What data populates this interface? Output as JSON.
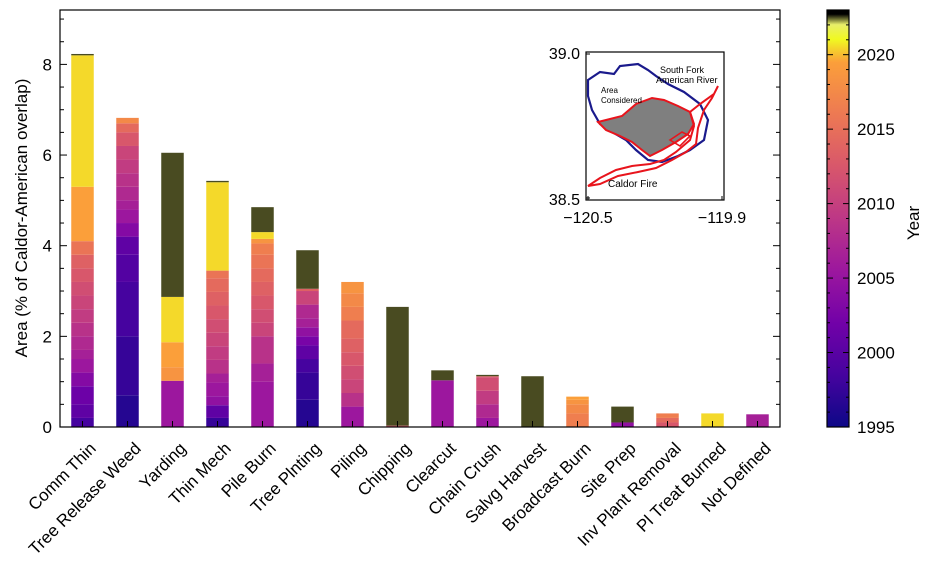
{
  "chart_data": {
    "type": "bar",
    "subtype": "stacked",
    "ylabel": "Area (% of Caldor-American overlap)",
    "ylim": [
      0,
      9.2
    ],
    "yticks": [
      0,
      2,
      4,
      6,
      8
    ],
    "categories": [
      "Comm Thin",
      "Tree Release Weed",
      "Yarding",
      "Thin Mech",
      "Pile Burn",
      "Tree Plnting",
      "Piling",
      "Chipping",
      "Clearcut",
      "Chain Crush",
      "Salvg Harvest",
      "Broadcast Burn",
      "Site Prep",
      "Inv Plant Removal",
      "Pl Treat Burned",
      "Not Defined"
    ],
    "segments": [
      [
        {
          "year": 1998,
          "value": 0.2
        },
        {
          "year": 2000,
          "value": 0.3
        },
        {
          "year": 2001,
          "value": 0.4
        },
        {
          "year": 2003,
          "value": 0.3
        },
        {
          "year": 2005,
          "value": 0.3
        },
        {
          "year": 2006,
          "value": 0.2
        },
        {
          "year": 2007,
          "value": 0.3
        },
        {
          "year": 2008,
          "value": 0.3
        },
        {
          "year": 2009,
          "value": 0.3
        },
        {
          "year": 2010,
          "value": 0.3
        },
        {
          "year": 2011,
          "value": 0.3
        },
        {
          "year": 2012,
          "value": 0.3
        },
        {
          "year": 2013,
          "value": 0.3
        },
        {
          "year": 2015,
          "value": 0.3
        },
        {
          "year": 2019,
          "value": 1.2
        },
        {
          "year": 2020,
          "value": 2.9
        },
        {
          "year": 2022,
          "value": 0.03
        }
      ],
      [
        {
          "year": 1996,
          "value": 0.7
        },
        {
          "year": 1997,
          "value": 1.3
        },
        {
          "year": 1998,
          "value": 1.2
        },
        {
          "year": 1999,
          "value": 0.6
        },
        {
          "year": 2000,
          "value": 0.4
        },
        {
          "year": 2003,
          "value": 0.3
        },
        {
          "year": 2005,
          "value": 0.3
        },
        {
          "year": 2006,
          "value": 0.2
        },
        {
          "year": 2007,
          "value": 0.3
        },
        {
          "year": 2008,
          "value": 0.3
        },
        {
          "year": 2009,
          "value": 0.3
        },
        {
          "year": 2010,
          "value": 0.3
        },
        {
          "year": 2012,
          "value": 0.3
        },
        {
          "year": 2014,
          "value": 0.2
        },
        {
          "year": 2017,
          "value": 0.12
        }
      ],
      [
        {
          "year": 2005,
          "value": 1.02
        },
        {
          "year": 2018,
          "value": 0.3
        },
        {
          "year": 2019,
          "value": 0.55
        },
        {
          "year": 2020,
          "value": 1.0
        },
        {
          "year": 2022,
          "value": 3.18
        }
      ],
      [
        {
          "year": 1997,
          "value": 0.2
        },
        {
          "year": 2000,
          "value": 0.28
        },
        {
          "year": 2004,
          "value": 0.2
        },
        {
          "year": 2005,
          "value": 0.3
        },
        {
          "year": 2006,
          "value": 0.2
        },
        {
          "year": 2008,
          "value": 0.3
        },
        {
          "year": 2009,
          "value": 0.3
        },
        {
          "year": 2010,
          "value": 0.3
        },
        {
          "year": 2011,
          "value": 0.3
        },
        {
          "year": 2012,
          "value": 0.3
        },
        {
          "year": 2013,
          "value": 0.3
        },
        {
          "year": 2014,
          "value": 0.3
        },
        {
          "year": 2015,
          "value": 0.17
        },
        {
          "year": 2020,
          "value": 1.95
        },
        {
          "year": 2022,
          "value": 0.03
        }
      ],
      [
        {
          "year": 2005,
          "value": 1.0
        },
        {
          "year": 2006,
          "value": 0.4
        },
        {
          "year": 2008,
          "value": 0.6
        },
        {
          "year": 2010,
          "value": 0.3
        },
        {
          "year": 2011,
          "value": 0.3
        },
        {
          "year": 2012,
          "value": 0.3
        },
        {
          "year": 2013,
          "value": 0.3
        },
        {
          "year": 2014,
          "value": 0.3
        },
        {
          "year": 2015,
          "value": 0.3
        },
        {
          "year": 2016,
          "value": 0.25
        },
        {
          "year": 2018,
          "value": 0.1
        },
        {
          "year": 2020,
          "value": 0.15
        },
        {
          "year": 2022,
          "value": 0.55
        }
      ],
      [
        {
          "year": 1996,
          "value": 0.6
        },
        {
          "year": 1997,
          "value": 0.6
        },
        {
          "year": 1998,
          "value": 0.3
        },
        {
          "year": 2000,
          "value": 0.3
        },
        {
          "year": 2002,
          "value": 0.2
        },
        {
          "year": 2004,
          "value": 0.2
        },
        {
          "year": 2006,
          "value": 0.2
        },
        {
          "year": 2007,
          "value": 0.3
        },
        {
          "year": 2010,
          "value": 0.3
        },
        {
          "year": 2013,
          "value": 0.05
        },
        {
          "year": 2022,
          "value": 0.85
        }
      ],
      [
        {
          "year": 2005,
          "value": 0.45
        },
        {
          "year": 2008,
          "value": 0.3
        },
        {
          "year": 2010,
          "value": 0.3
        },
        {
          "year": 2011,
          "value": 0.3
        },
        {
          "year": 2012,
          "value": 0.3
        },
        {
          "year": 2013,
          "value": 0.3
        },
        {
          "year": 2014,
          "value": 0.4
        },
        {
          "year": 2016,
          "value": 0.3
        },
        {
          "year": 2017,
          "value": 0.3
        },
        {
          "year": 2018,
          "value": 0.25
        }
      ],
      [
        {
          "year": 2012,
          "value": 0.03
        },
        {
          "year": 2022,
          "value": 2.62
        }
      ],
      [
        {
          "year": 2005,
          "value": 1.03
        },
        {
          "year": 2022,
          "value": 0.22
        }
      ],
      [
        {
          "year": 2005,
          "value": 0.2
        },
        {
          "year": 2007,
          "value": 0.3
        },
        {
          "year": 2009,
          "value": 0.3
        },
        {
          "year": 2011,
          "value": 0.3
        },
        {
          "year": 2013,
          "value": 0.02
        },
        {
          "year": 2022,
          "value": 0.03
        }
      ],
      [
        {
          "year": 2022,
          "value": 1.12
        }
      ],
      [
        {
          "year": 2016,
          "value": 0.3
        },
        {
          "year": 2017,
          "value": 0.2
        },
        {
          "year": 2018,
          "value": 0.1
        },
        {
          "year": 2019,
          "value": 0.07
        }
      ],
      [
        {
          "year": 2004,
          "value": 0.1
        },
        {
          "year": 2022,
          "value": 0.35
        }
      ],
      [
        {
          "year": 2012,
          "value": 0.1
        },
        {
          "year": 2014,
          "value": 0.1
        },
        {
          "year": 2016,
          "value": 0.1
        }
      ],
      [
        {
          "year": 2020,
          "value": 0.3
        }
      ],
      [
        {
          "year": 2006,
          "value": 0.28
        }
      ]
    ],
    "colorbar": {
      "label": "Year",
      "min": 1995,
      "max": 2023,
      "ticks": [
        1995,
        2000,
        2005,
        2010,
        2015,
        2020
      ]
    },
    "inset": {
      "lat_labels": [
        "39.0",
        "38.5"
      ],
      "lon_labels": [
        "−120.5",
        "−119.9"
      ],
      "labels": {
        "river": [
          "South Fork",
          "American River"
        ],
        "area": [
          "Area",
          "Considered"
        ],
        "fire": "Caldor Fire"
      },
      "colors": {
        "river": "#1a1a8c",
        "fire": "#e8141c",
        "area": "#7f7f7f"
      }
    }
  }
}
